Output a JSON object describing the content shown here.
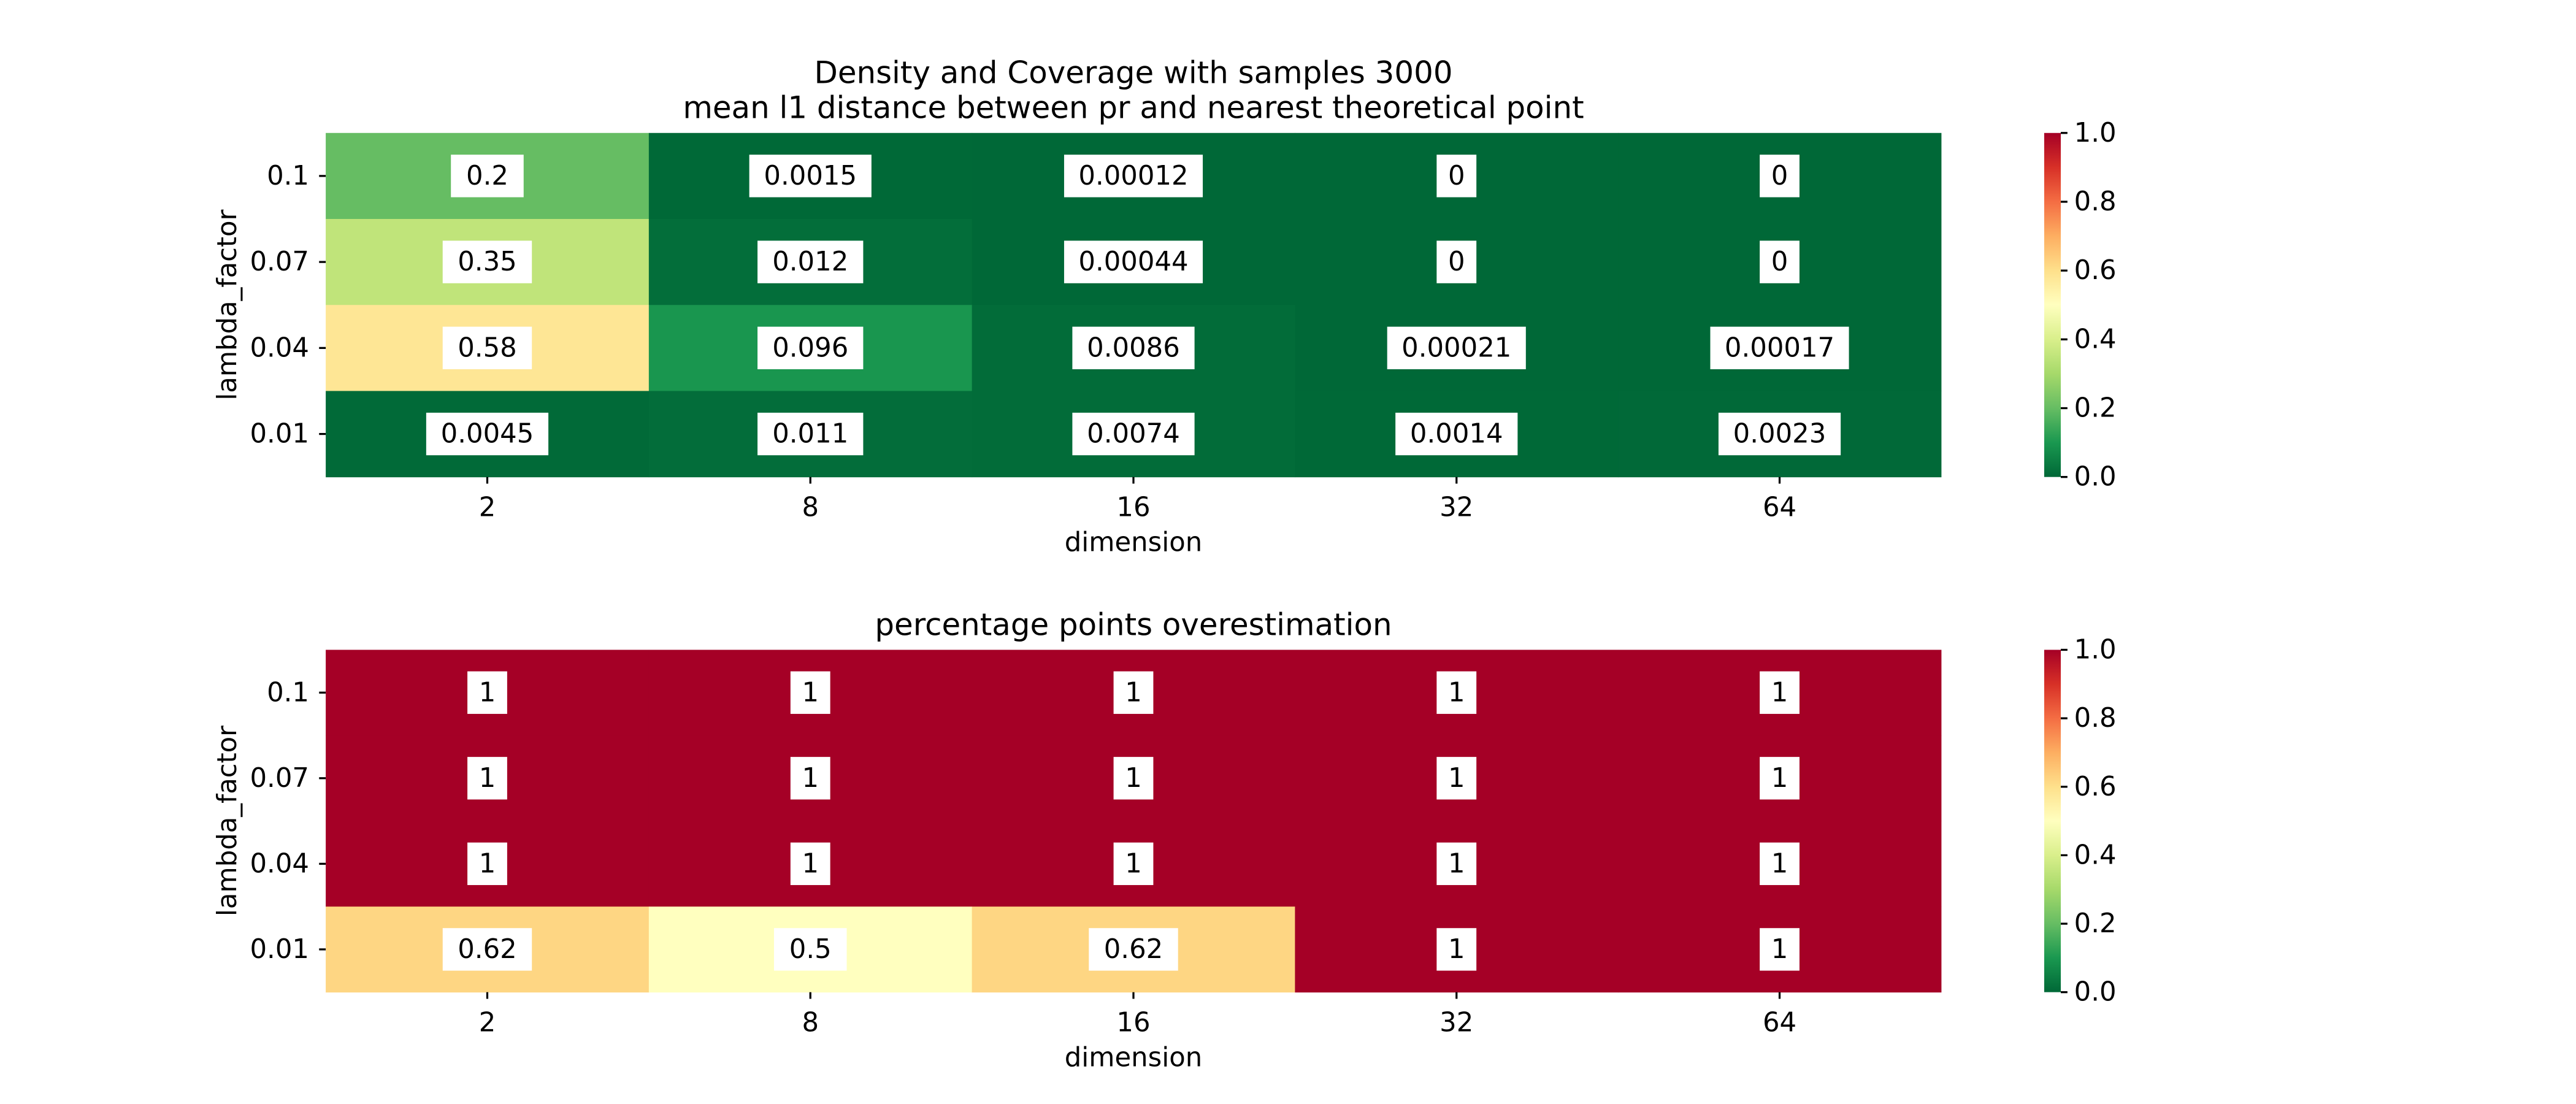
{
  "chart_data": [
    {
      "type": "heatmap",
      "title": "Density and Coverage with samples 3000\nmean l1 distance between pr and nearest theoretical point",
      "xlabel": "dimension",
      "ylabel": "lambda_factor",
      "x_categories": [
        "2",
        "8",
        "16",
        "32",
        "64"
      ],
      "y_categories": [
        "0.1",
        "0.07",
        "0.04",
        "0.01"
      ],
      "values": [
        [
          0.2,
          0.0015,
          0.00012,
          0,
          0
        ],
        [
          0.35,
          0.012,
          0.00044,
          0,
          0
        ],
        [
          0.58,
          0.096,
          0.0086,
          0.00021,
          0.00017
        ],
        [
          0.0045,
          0.011,
          0.0074,
          0.0014,
          0.0023
        ]
      ],
      "annotations": [
        [
          "0.2",
          "0.0015",
          "0.00012",
          "0",
          "0"
        ],
        [
          "0.35",
          "0.012",
          "0.00044",
          "0",
          "0"
        ],
        [
          "0.58",
          "0.096",
          "0.0086",
          "0.00021",
          "0.00017"
        ],
        [
          "0.0045",
          "0.011",
          "0.0074",
          "0.0014",
          "0.0023"
        ]
      ],
      "colormap": "RdYlGn_r",
      "vmin": 0,
      "vmax": 1,
      "colorbar_ticks": [
        "0.0",
        "0.2",
        "0.4",
        "0.6",
        "0.8",
        "1.0"
      ]
    },
    {
      "type": "heatmap",
      "title": "percentage points overestimation",
      "xlabel": "dimension",
      "ylabel": "lambda_factor",
      "x_categories": [
        "2",
        "8",
        "16",
        "32",
        "64"
      ],
      "y_categories": [
        "0.1",
        "0.07",
        "0.04",
        "0.01"
      ],
      "values": [
        [
          1,
          1,
          1,
          1,
          1
        ],
        [
          1,
          1,
          1,
          1,
          1
        ],
        [
          1,
          1,
          1,
          1,
          1
        ],
        [
          0.62,
          0.5,
          0.62,
          1,
          1
        ]
      ],
      "annotations": [
        [
          "1",
          "1",
          "1",
          "1",
          "1"
        ],
        [
          "1",
          "1",
          "1",
          "1",
          "1"
        ],
        [
          "1",
          "1",
          "1",
          "1",
          "1"
        ],
        [
          "0.62",
          "0.5",
          "0.62",
          "1",
          "1"
        ]
      ],
      "colormap": "RdYlGn_r",
      "vmin": 0,
      "vmax": 1,
      "colorbar_ticks": [
        "0.0",
        "0.2",
        "0.4",
        "0.6",
        "0.8",
        "1.0"
      ]
    }
  ]
}
